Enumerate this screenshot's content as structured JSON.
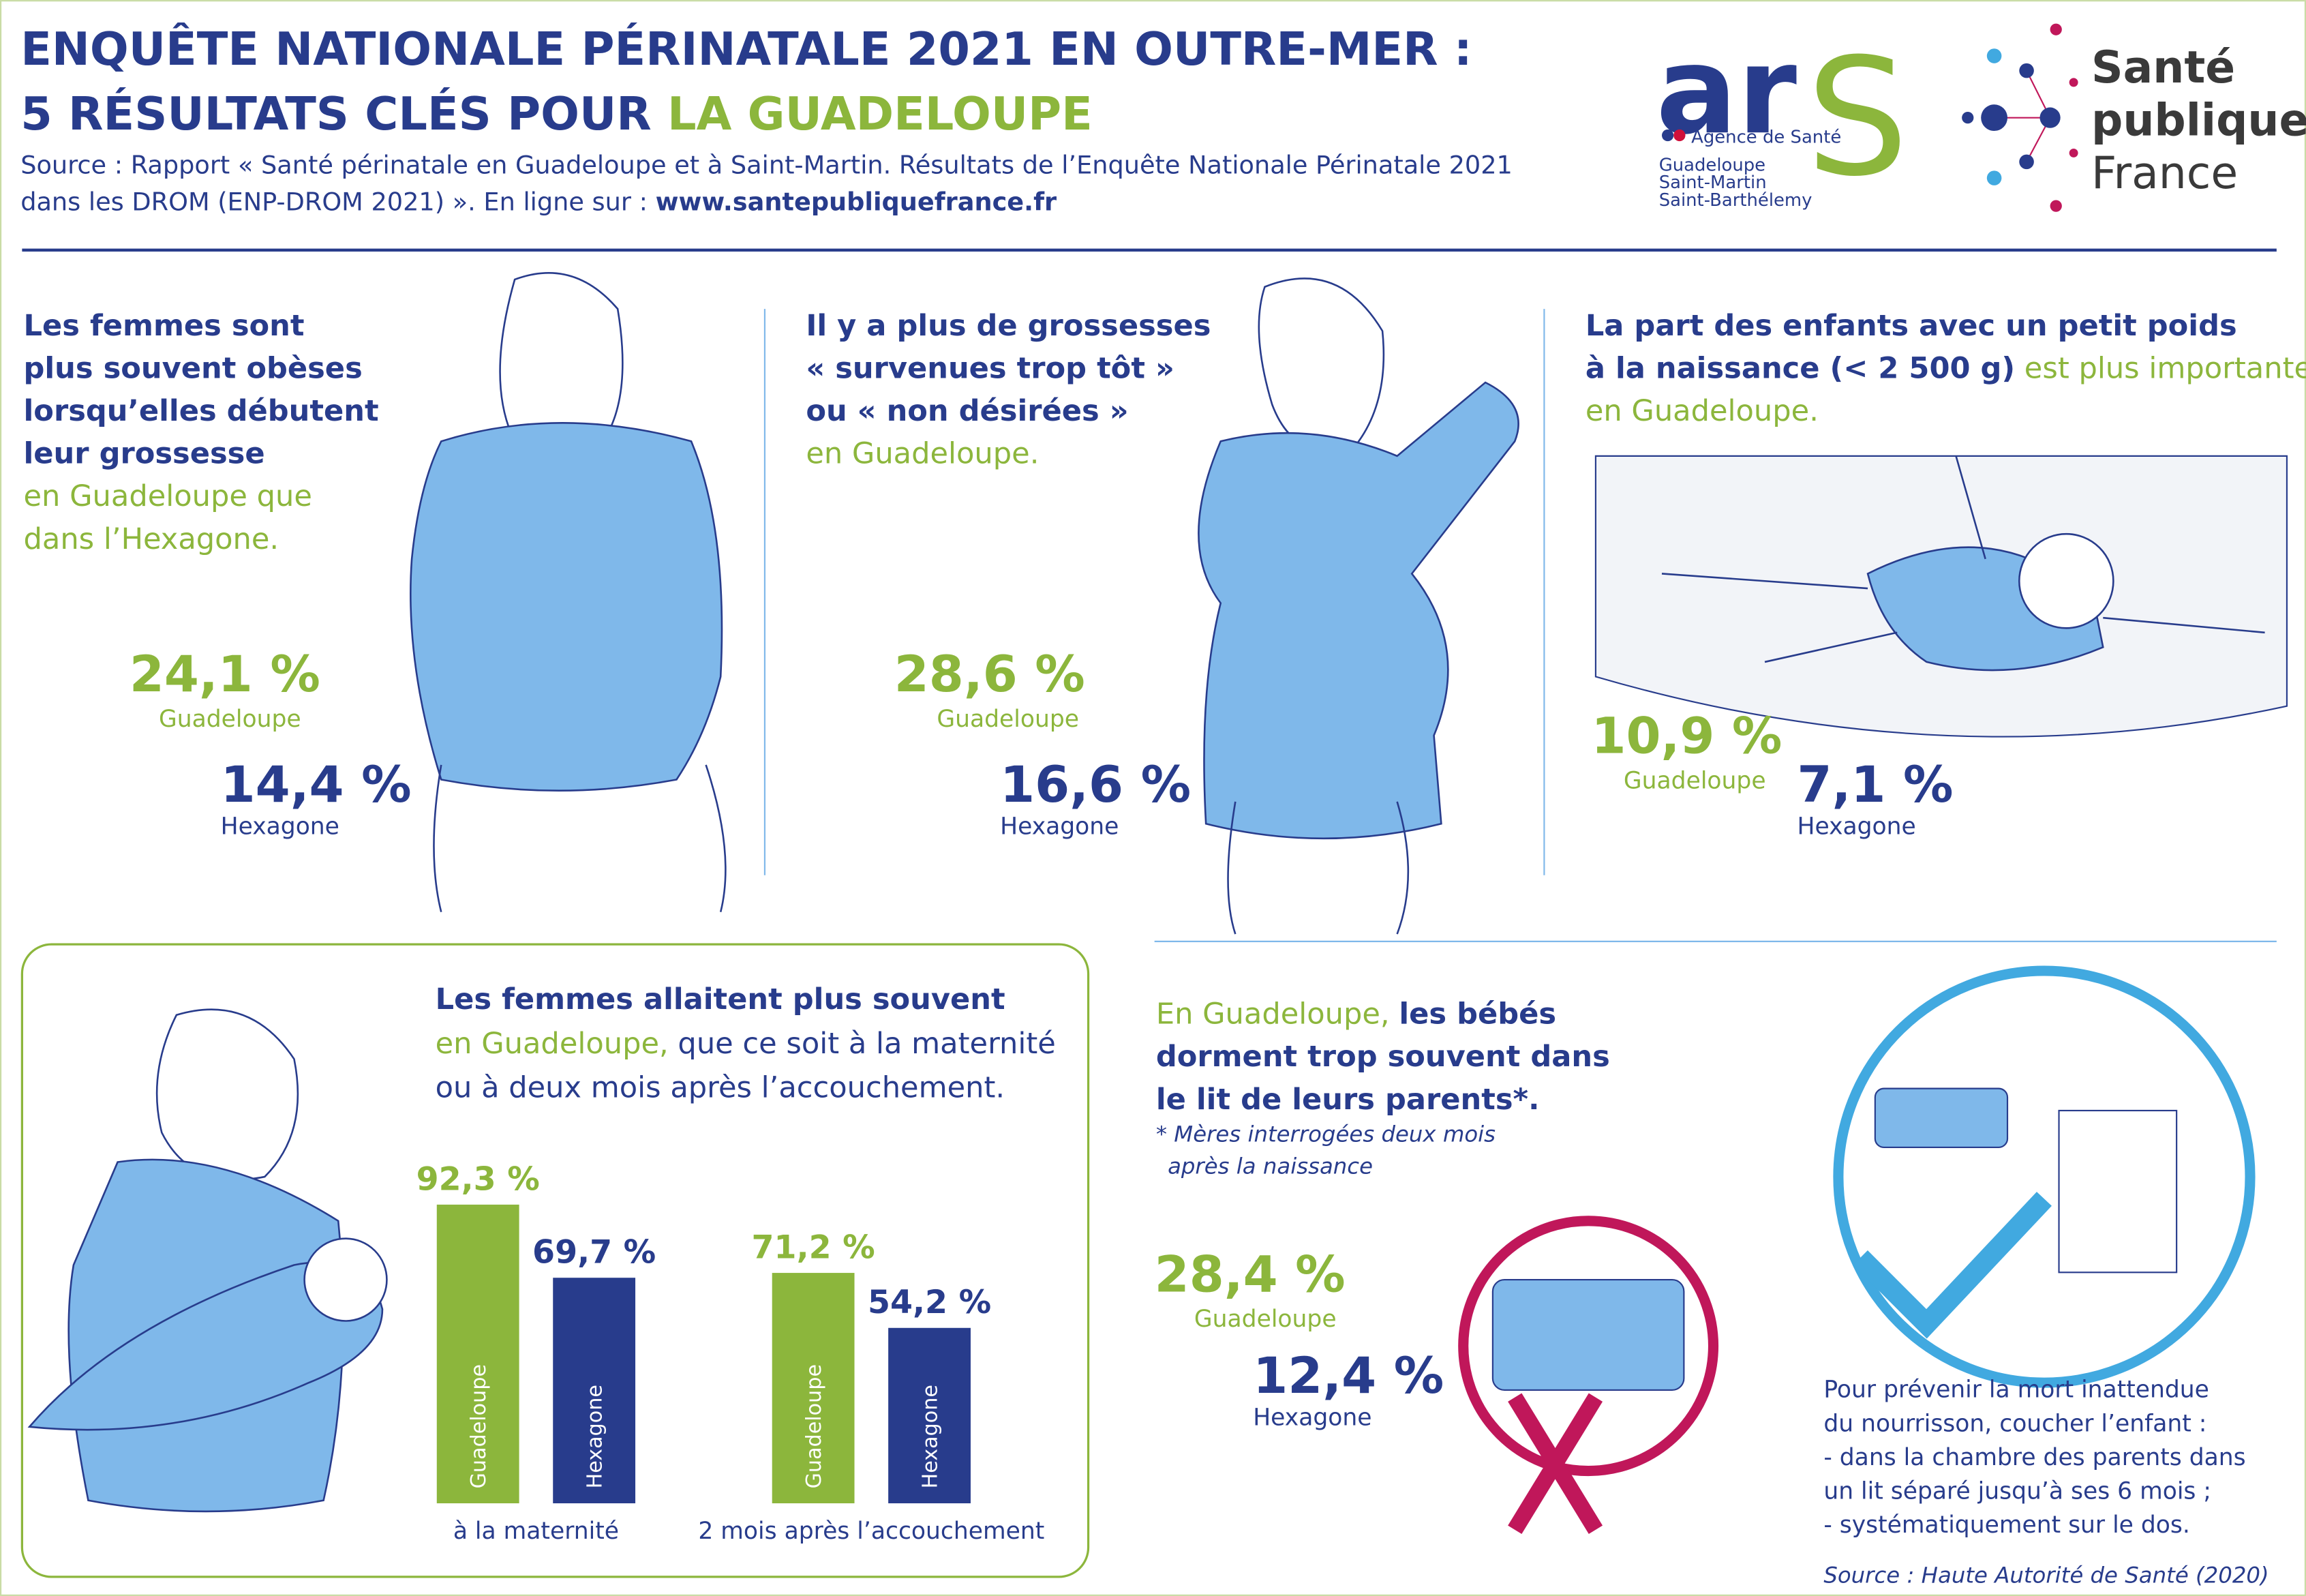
{
  "header": {
    "title_line1": "ENQUÊTE NATIONALE PÉRINATALE 2021 EN OUTRE-MER :",
    "title_line2_a": "5 RÉSULTATS CLÉS POUR ",
    "title_line2_b": "LA GUADELOUPE",
    "source_a": "Source : Rapport « Santé périnatale en Guadeloupe et à Saint-Martin. Résultats de l’Enquête Nationale Périnatale 2021",
    "source_b": "dans les DROM (ENP-DROM 2021) ». En ligne sur : ",
    "source_url": "www.santepubliquefrance.fr"
  },
  "logos": {
    "ars_a": "ar",
    "ars_b": "S",
    "ars_sub": "Agence de Santé",
    "ars_regions": [
      "Guadeloupe",
      "Saint-Martin",
      "Saint-Barthélemy"
    ],
    "spf": [
      "Santé",
      "publique",
      "France"
    ]
  },
  "panels": [
    {
      "lines": [
        [
          {
            "b": "Les femmes sont"
          }
        ],
        [
          {
            "b": "plus souvent obèses"
          }
        ],
        [
          {
            "b": "lorsqu’elles débutent"
          }
        ],
        [
          {
            "b": "leur grossesse"
          }
        ],
        [
          {
            "g": "en Guadeloupe que"
          }
        ],
        [
          {
            "g": "dans l’Hexagone."
          }
        ]
      ],
      "guadeloupe": {
        "value": "24,1 %",
        "label": "Guadeloupe"
      },
      "hexagone": {
        "value": "14,4 %",
        "label": "Hexagone"
      }
    },
    {
      "lines": [
        [
          {
            "b": "Il y a plus de grossesses"
          }
        ],
        [
          {
            "b": "« survenues trop tôt »"
          }
        ],
        [
          {
            "b": "ou « non désirées »"
          }
        ],
        [
          {
            "g": "en Guadeloupe."
          }
        ]
      ],
      "guadeloupe": {
        "value": "28,6 %",
        "label": "Guadeloupe"
      },
      "hexagone": {
        "value": "16,6 %",
        "label": "Hexagone"
      }
    },
    {
      "lines": [
        [
          {
            "b": "La part des enfants avec un petit poids"
          }
        ],
        [
          {
            "b": "à la naissance (< 2 500 g)"
          },
          {
            "g": " est plus importante"
          }
        ],
        [
          {
            "g": "en Guadeloupe."
          }
        ]
      ],
      "guadeloupe": {
        "value": "10,9 %",
        "label": "Guadeloupe"
      },
      "hexagone": {
        "value": "7,1 %",
        "label": "Hexagone"
      }
    }
  ],
  "breastfeeding": {
    "lines": [
      [
        {
          "b": "Les femmes allaitent plus souvent"
        }
      ],
      [
        {
          "g": "en Guadeloupe,"
        },
        {
          "t": " que ce soit à la maternité"
        }
      ],
      [
        {
          "t": "ou à deux mois après l’accouchement."
        }
      ]
    ],
    "chart": {
      "type": "bar",
      "categories": [
        "à la maternité",
        "2 mois après l’accouchement"
      ],
      "series": [
        {
          "name": "Guadeloupe",
          "color": "#8cb63c",
          "values": [
            92.3,
            71.2
          ],
          "value_labels": [
            "92,3 %",
            "71,2 %"
          ]
        },
        {
          "name": "Hexagone",
          "color": "#283c8c",
          "values": [
            69.7,
            54.2
          ],
          "value_labels": [
            "69,7 %",
            "54,2 %"
          ]
        }
      ]
    }
  },
  "sleep": {
    "lines": [
      [
        {
          "g": "En Guadeloupe, "
        },
        {
          "b": "les bébés"
        }
      ],
      [
        {
          "b": "dorment trop souvent dans"
        }
      ],
      [
        {
          "b": "le lit de leurs parents*."
        }
      ]
    ],
    "note": [
      "* Mères interrogées deux mois",
      "après la naissance"
    ],
    "guadeloupe": {
      "value": "28,4 %",
      "label": "Guadeloupe"
    },
    "hexagone": {
      "value": "12,4 %",
      "label": "Hexagone"
    },
    "advice": [
      "Pour prévenir la mort inattendue",
      "du nourrisson, coucher l’enfant :",
      "- dans la chambre des parents dans",
      "  un lit séparé jusqu’à ses 6 mois ;",
      "- systématiquement sur le dos."
    ],
    "source": "Source : Haute Autorité de Santé (2020)"
  }
}
